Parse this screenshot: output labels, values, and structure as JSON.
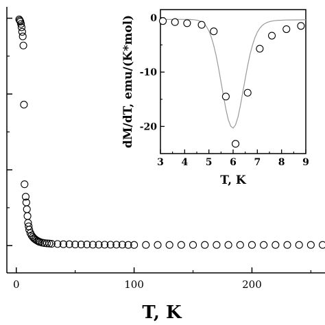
{
  "chart_data": [
    {
      "type": "scatter",
      "title": "",
      "xlabel": "T, K",
      "ylabel": "",
      "xlim": [
        -8,
        262
      ],
      "ylim": [
        -0.12,
        1.05
      ],
      "x_ticks": [
        0,
        100,
        200
      ],
      "x_tick_labels": [
        "0",
        "100",
        "200"
      ],
      "y_ticks": [
        0,
        0.3333,
        0.6667,
        1.0
      ],
      "y_tick_labels": [
        "",
        "",
        "",
        ""
      ],
      "marker": "open-circle",
      "grid": false,
      "legend": "none",
      "series": [
        {
          "x": [
            2.5,
            3.0,
            3.5,
            4.0,
            4.5,
            5.0,
            5.5,
            6.0,
            6.5,
            7.0,
            8.0,
            8.5,
            9.0,
            9.5,
            10.0,
            10.5,
            11.0,
            12.0,
            13.0,
            14.0,
            15.0,
            16.0,
            17.0,
            18.0,
            19.0,
            20.0,
            22.0,
            24.0,
            26.0,
            28.0,
            30.0,
            35.0,
            40.0,
            45.0,
            50.0,
            55.0,
            60.0,
            65.0,
            70.0,
            75.0,
            80.0,
            85.0,
            90.0,
            95.0,
            100.0,
            110.0,
            120.0,
            130.0,
            140.0,
            150.0,
            160.0,
            170.0,
            180.0,
            190.0,
            200.0,
            210.0,
            220.0,
            230.0,
            240.0,
            250.0,
            260.0
          ],
          "y": [
            0.995,
            0.99,
            0.985,
            0.975,
            0.96,
            0.94,
            0.92,
            0.88,
            0.62,
            0.27,
            0.215,
            0.19,
            0.16,
            0.13,
            0.1,
            0.085,
            0.07,
            0.055,
            0.045,
            0.038,
            0.032,
            0.028,
            0.024,
            0.021,
            0.018,
            0.016,
            0.013,
            0.011,
            0.01,
            0.009,
            0.008,
            0.007,
            0.006,
            0.006,
            0.005,
            0.005,
            0.005,
            0.004,
            0.004,
            0.004,
            0.004,
            0.004,
            0.004,
            0.003,
            0.003,
            0.003,
            0.003,
            0.003,
            0.003,
            0.003,
            0.003,
            0.003,
            0.003,
            0.003,
            0.003,
            0.003,
            0.003,
            0.003,
            0.003,
            0.003,
            0.003
          ]
        }
      ]
    },
    {
      "type": "scatter",
      "title": "",
      "xlabel": "T, K",
      "ylabel": "dM/dT, emu/(K*mol)",
      "xlim": [
        3,
        9
      ],
      "ylim": [
        -25,
        1.5
      ],
      "x_ticks": [
        3,
        4,
        5,
        6,
        7,
        8,
        9
      ],
      "x_tick_labels": [
        "3",
        "4",
        "5",
        "6",
        "7",
        "8",
        "9"
      ],
      "y_ticks": [
        0,
        -10,
        -20
      ],
      "y_tick_labels": [
        "0",
        "-10",
        "-20"
      ],
      "marker": "open-circle",
      "fit_line": "gaussian",
      "grid": false,
      "legend": "none",
      "series": [
        {
          "x": [
            3.1,
            3.6,
            4.1,
            4.7,
            5.2,
            5.7,
            6.1,
            6.6,
            7.1,
            7.6,
            8.2,
            8.8
          ],
          "y": [
            -0.6,
            -0.8,
            -1.0,
            -1.3,
            -2.5,
            -14.5,
            -23.2,
            -13.8,
            -5.7,
            -3.3,
            -2.1,
            -1.5
          ]
        },
        {
          "x": [
            3.0,
            3.1,
            3.2,
            3.3,
            3.4,
            3.5,
            3.6,
            3.7,
            3.8,
            3.9,
            4.0,
            4.1,
            4.2,
            4.3,
            4.4,
            4.5,
            4.6,
            4.7,
            4.8,
            4.9,
            5.0,
            5.1,
            5.2,
            5.3,
            5.4,
            5.5,
            5.6,
            5.7,
            5.8,
            5.9,
            6.0,
            6.1,
            6.2,
            6.3,
            6.4,
            6.5,
            6.6,
            6.7,
            6.8,
            6.9,
            7.0,
            7.1,
            7.2,
            7.3,
            7.4,
            7.5,
            7.6,
            7.7,
            7.8,
            7.9,
            8.0,
            8.1,
            8.2,
            8.3,
            8.4,
            8.5,
            8.6,
            8.7,
            8.8,
            8.9,
            9.0
          ],
          "y": [
            -0.3,
            -0.3,
            -0.3,
            -0.3,
            -0.3,
            -0.3,
            -0.3,
            -0.3,
            -0.3,
            -0.3,
            -0.31,
            -0.31,
            -0.32,
            -0.34,
            -0.37,
            -0.44,
            -0.56,
            -0.76,
            -1.1,
            -1.62,
            -2.42,
            -3.57,
            -5.1,
            -7.02,
            -9.3,
            -11.82,
            -14.39,
            -16.8,
            -18.74,
            -19.96,
            -20.3,
            -19.71,
            -18.27,
            -16.17,
            -13.71,
            -11.18,
            -8.8,
            -6.71,
            -5.0,
            -3.66,
            -2.65,
            -1.93,
            -1.43,
            -1.1,
            -0.87,
            -0.72,
            -0.62,
            -0.55,
            -0.5,
            -0.47,
            -0.45,
            -0.43,
            -0.42,
            -0.41,
            -0.4,
            -0.4,
            -0.39,
            -0.39,
            -0.39,
            -0.38,
            -0.38
          ]
        }
      ]
    }
  ]
}
